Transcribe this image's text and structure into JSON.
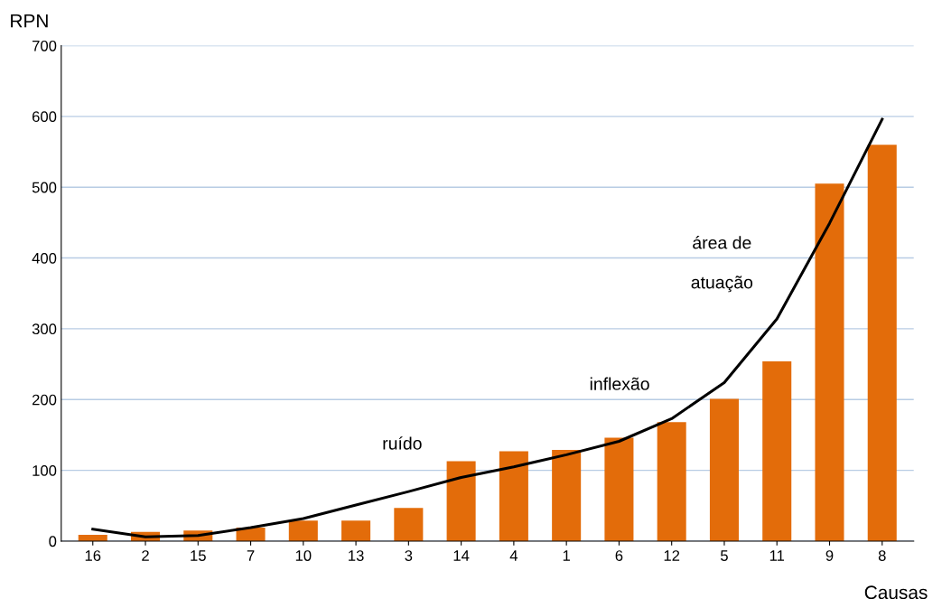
{
  "chart_data": {
    "type": "bar",
    "xlabel": "Causas",
    "ylabel": "RPN",
    "categories": [
      "16",
      "2",
      "15",
      "7",
      "10",
      "13",
      "3",
      "14",
      "4",
      "1",
      "6",
      "12",
      "5",
      "11",
      "9",
      "8"
    ],
    "series": [
      {
        "color": "#e36c0a",
        "values": [
          9,
          13,
          15,
          19,
          29,
          29,
          47,
          113,
          127,
          129,
          146,
          168,
          201,
          254,
          505,
          560
        ]
      },
      {
        "type": "line",
        "color": "#000000",
        "values": [
          17,
          6,
          8,
          19,
          32,
          51,
          70,
          90,
          105,
          122,
          141,
          173,
          224,
          314,
          449,
          596
        ]
      }
    ],
    "ylim": [
      0,
      700
    ],
    "yticks": [
      0,
      100,
      200,
      300,
      400,
      500,
      600,
      700
    ],
    "grid": "y",
    "legend": false,
    "annotations": [
      "ruído",
      "inflexão",
      "área de",
      "atuação"
    ]
  }
}
